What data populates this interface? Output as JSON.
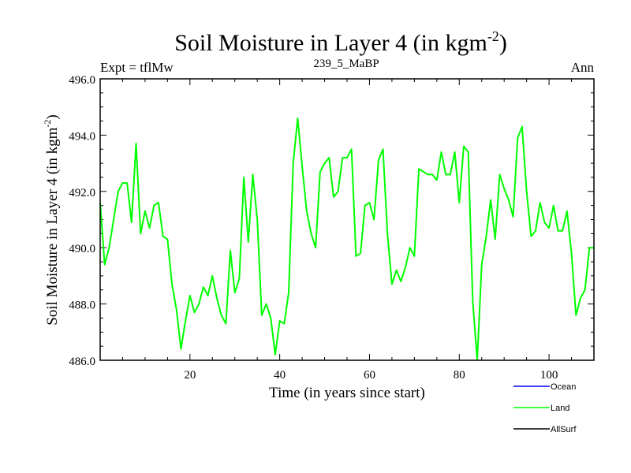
{
  "chart_data": {
    "type": "line",
    "title_main": "Soil Moisture in Layer 4 (in kgm",
    "title_sup": "-2",
    "title_end": ")",
    "subtitle_left": "Expt = tflMw",
    "subtitle_center": "239_5_MaBP",
    "subtitle_right": "Ann",
    "xlabel": "Time (in years since start)",
    "ylabel_main": "Soil Moisture in Layer 4 (in kgm",
    "ylabel_sup": "-2",
    "ylabel_end": ")",
    "xlim": [
      0,
      110
    ],
    "ylim": [
      486,
      496
    ],
    "x_ticks": [
      20,
      40,
      60,
      80,
      100
    ],
    "x_tick_labels": [
      "20",
      "40",
      "60",
      "80",
      "100"
    ],
    "y_ticks": [
      486,
      488,
      490,
      492,
      494,
      496
    ],
    "y_tick_labels": [
      "486.0",
      "488.0",
      "490.0",
      "492.0",
      "494.0",
      "496.0"
    ],
    "legend": [
      {
        "name": "Ocean",
        "color": "#0000ff"
      },
      {
        "name": "Land",
        "color": "#00ff00"
      },
      {
        "name": "AllSurf",
        "color": "#000000"
      }
    ],
    "series": [
      {
        "name": "Land",
        "color": "#00ff00",
        "x": [
          0,
          1,
          2,
          3,
          4,
          5,
          6,
          7,
          8,
          9,
          10,
          11,
          12,
          13,
          14,
          15,
          16,
          17,
          18,
          19,
          20,
          21,
          22,
          23,
          24,
          25,
          26,
          27,
          28,
          29,
          30,
          31,
          32,
          33,
          34,
          35,
          36,
          37,
          38,
          39,
          40,
          41,
          42,
          43,
          44,
          45,
          46,
          47,
          48,
          49,
          50,
          51,
          52,
          53,
          54,
          55,
          56,
          57,
          58,
          59,
          60,
          61,
          62,
          63,
          64,
          65,
          66,
          67,
          68,
          69,
          70,
          71,
          72,
          73,
          74,
          75,
          76,
          77,
          78,
          79,
          80,
          81,
          82,
          83,
          84,
          85,
          86,
          87,
          88,
          89,
          90,
          91,
          92,
          93,
          94,
          95,
          96,
          97,
          98,
          99,
          100,
          101,
          102,
          103,
          104,
          105,
          106,
          107,
          108,
          109,
          110
        ],
        "values": [
          491.6,
          489.4,
          490.0,
          491.0,
          492.0,
          492.3,
          492.3,
          490.9,
          493.7,
          490.5,
          491.3,
          490.7,
          491.5,
          491.6,
          490.4,
          490.3,
          488.7,
          487.8,
          486.4,
          487.4,
          488.3,
          487.7,
          488.0,
          488.6,
          488.3,
          489.0,
          488.2,
          487.6,
          487.3,
          489.9,
          488.4,
          488.9,
          492.5,
          490.2,
          492.6,
          491.0,
          487.6,
          488.0,
          487.5,
          486.2,
          487.4,
          487.3,
          488.4,
          493.0,
          494.6,
          492.9,
          491.3,
          490.5,
          490.0,
          492.7,
          493.0,
          493.2,
          491.8,
          492.0,
          493.2,
          493.2,
          493.5,
          489.7,
          489.8,
          491.5,
          491.6,
          491.0,
          493.1,
          493.5,
          490.5,
          488.7,
          489.2,
          488.8,
          489.3,
          490.0,
          489.7,
          492.8,
          492.7,
          492.6,
          492.6,
          492.4,
          493.4,
          492.6,
          492.6,
          493.4,
          491.6,
          493.6,
          493.4,
          488.1,
          486.0,
          489.4,
          490.4,
          491.7,
          490.3,
          492.6,
          492.1,
          491.7,
          491.1,
          493.9,
          494.3,
          492.0,
          490.4,
          490.6,
          491.6,
          490.9,
          490.7,
          491.5,
          490.6,
          490.6,
          491.3,
          489.8,
          487.6,
          488.2,
          488.5,
          490.0,
          490.0
        ]
      }
    ]
  }
}
